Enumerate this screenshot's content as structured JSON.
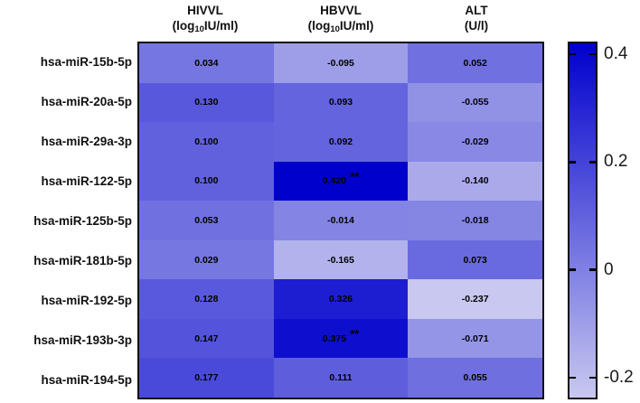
{
  "figure": {
    "background": "#ffffff",
    "border_color": "#0d0d0d",
    "text_color": "#000000"
  },
  "chart_data": {
    "type": "heatmap",
    "title": "",
    "rows": [
      "hsa-miR-15b-5p",
      "hsa-miR-20a-5p",
      "hsa-miR-29a-3p",
      "hsa-miR-122-5p",
      "hsa-miR-125b-5p",
      "hsa-miR-181b-5p",
      "hsa-miR-192-5p",
      "hsa-miR-193b-3p",
      "hsa-miR-194-5p"
    ],
    "columns": [
      {
        "line1": "HIVVL",
        "unit_pre": "(log",
        "unit_sub": "10",
        "unit_post": "IU/ml)"
      },
      {
        "line1": "HBVVL",
        "unit_pre": "(log",
        "unit_sub": "10",
        "unit_post": "IU/ml)"
      },
      {
        "line1": "ALT",
        "unit_pre": "(U/l)",
        "unit_sub": "",
        "unit_post": ""
      }
    ],
    "values": [
      [
        0.034,
        -0.095,
        0.052
      ],
      [
        0.13,
        0.093,
        -0.055
      ],
      [
        0.1,
        0.092,
        -0.029
      ],
      [
        0.1,
        0.42,
        -0.14
      ],
      [
        0.053,
        -0.014,
        -0.018
      ],
      [
        0.029,
        -0.165,
        0.073
      ],
      [
        0.128,
        0.326,
        -0.237
      ],
      [
        0.147,
        0.375,
        -0.071
      ],
      [
        0.177,
        0.111,
        0.055
      ]
    ],
    "significance": [
      [
        "",
        "",
        ""
      ],
      [
        "",
        "",
        ""
      ],
      [
        "",
        "",
        ""
      ],
      [
        "",
        "**",
        ""
      ],
      [
        "",
        "",
        ""
      ],
      [
        "",
        "",
        ""
      ],
      [
        "",
        "",
        ""
      ],
      [
        "",
        "**",
        ""
      ],
      [
        "",
        "",
        ""
      ]
    ],
    "value_decimals": 3,
    "color_scale": {
      "vmin": -0.237,
      "vmax": 0.42,
      "light_rgb": [
        200,
        200,
        240
      ],
      "dark_rgb": [
        0,
        0,
        205
      ]
    },
    "colorbar": {
      "position": "right",
      "ticks": [
        {
          "value": 0.4,
          "label": "0.4"
        },
        {
          "value": 0.2,
          "label": "0.2"
        },
        {
          "value": 0,
          "label": "0"
        },
        {
          "value": -0.2,
          "label": "-0.2"
        }
      ]
    }
  }
}
